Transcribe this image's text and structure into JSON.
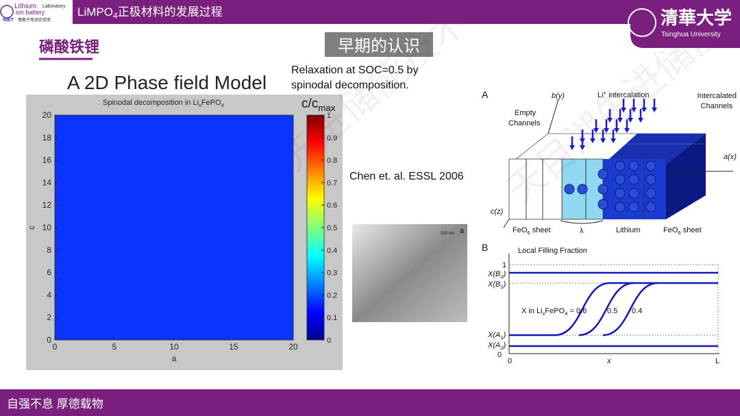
{
  "header": {
    "logo": {
      "line1": "Lithium",
      "line2": "ion battery",
      "lab": "Laboratory",
      "inet": "INET",
      "cn": "锂离子电池实验室"
    },
    "title": [
      "LiMPO",
      "4",
      "正极材料的发展过程"
    ],
    "university_cn": "清華大学",
    "university_en": "Tsinghua University"
  },
  "section": "磷酸铁锂",
  "badge": "早期的认识",
  "model_title": "A 2D Phase field Model",
  "note": [
    "Relaxation at SOC=0.5 by",
    "spinodal decomposition."
  ],
  "citation": "Chen et. al. ESSL 2006",
  "plot": {
    "title": [
      "Spinodal decomposition in Li",
      "x",
      "FePO",
      "4"
    ],
    "xlabel": "a",
    "ylabel": "c",
    "xlim": [
      0,
      20
    ],
    "xticks": [
      0,
      5,
      10,
      15,
      20
    ],
    "ylim": [
      0,
      20
    ],
    "yticks": [
      0,
      2,
      4,
      6,
      8,
      10,
      12,
      14,
      16,
      18,
      20
    ],
    "colorbar_label": [
      "c/c",
      "max"
    ],
    "clim": [
      0,
      1
    ],
    "cticks": [
      0,
      0.1,
      0.2,
      0.3,
      0.4,
      0.5,
      0.6,
      0.7,
      0.8,
      0.9,
      1
    ]
  },
  "tem": {
    "scale": "200 nm",
    "label": "a"
  },
  "diagram_a": {
    "label": "A",
    "b_axis": "b(y)",
    "intercalation": [
      "Li",
      "+",
      " intercalation"
    ],
    "intercalated": [
      "Intercalated",
      "Channels"
    ],
    "empty": [
      "Empty",
      "Channels"
    ],
    "a_axis": "a(x)",
    "c_axis": "c(z)",
    "sheet_left": [
      "FeO",
      "6",
      " sheet"
    ],
    "lambda": "λ",
    "lithium": "Lithium",
    "sheet_right": [
      "FeO",
      "6",
      " sheet"
    ]
  },
  "diagram_b": {
    "label": "B",
    "title": "Local Filling Fraction",
    "one": "1",
    "xb2": [
      "X(B",
      "2",
      ")"
    ],
    "xb1": [
      "X(B",
      "1",
      ")"
    ],
    "fractions": [
      "X in Li",
      "x",
      "FePO",
      "4",
      " = 0.6"
    ],
    "f2": "0.5",
    "f3": "0.4",
    "xa1": [
      "X(A",
      "1",
      ")"
    ],
    "xa2": [
      "X(A",
      "2",
      ")"
    ],
    "zero_y": "0",
    "zero_x": "0",
    "x_axis": "x",
    "end": "L"
  },
  "footer": "自强不息 厚德载物",
  "watermark": "天目湖先进储能技术研究院"
}
